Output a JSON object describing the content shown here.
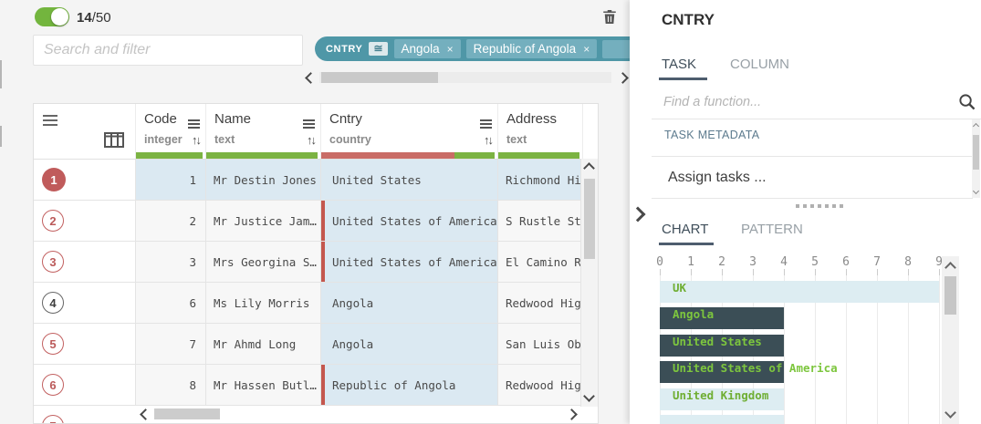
{
  "colors": {
    "accent_teal": "#4f97a7",
    "chip_teal": "#74afbe",
    "toggle_green": "#73b53e",
    "quality_green": "#7cb342",
    "quality_red": "#c96c66",
    "invalid_red": "#c4574e",
    "circle_red": "#c05b5b",
    "highlight_blue": "#dbe9f2",
    "bar_dark": "#3b4e56",
    "bar_light": "#ddedf2",
    "label_green": "#74b837"
  },
  "top_bar": {
    "toggle_state": "on",
    "shown_count": "14",
    "total_count": "/50",
    "search_placeholder": "Search and filter",
    "filter_pill": {
      "column": "CNTRY",
      "operator": "≅",
      "values": [
        "Angola",
        "Republic of Angola"
      ],
      "remove_glyph": "×"
    }
  },
  "table": {
    "header": {
      "sort_glyph": "↑↓",
      "columns": [
        {
          "id": "code",
          "title": "Code",
          "type": "integer",
          "width": 77,
          "has_menu": true,
          "has_sort": true,
          "quality": [
            {
              "color": "#7cb342",
              "pct": 100
            }
          ]
        },
        {
          "id": "name",
          "title": "Name",
          "type": "text",
          "width": 126,
          "has_menu": true,
          "has_sort": true,
          "quality": [
            {
              "color": "#7cb342",
              "pct": 100
            }
          ]
        },
        {
          "id": "cntry",
          "title": "Cntry",
          "type": "country",
          "width": 194,
          "has_menu": true,
          "has_sort": true,
          "quality": [
            {
              "color": "#c96c66",
              "pct": 77
            },
            {
              "color": "#7cb342",
              "pct": 23
            }
          ]
        },
        {
          "id": "address",
          "title": "Address",
          "type": "text",
          "width": 93,
          "has_menu": false,
          "has_sort": false,
          "quality": [
            {
              "color": "#7cb342",
              "pct": 100
            }
          ]
        }
      ]
    },
    "rows": [
      {
        "n": "1",
        "code": "1",
        "name": "Mr Destin Jones",
        "cntry": "United States",
        "addr": "Richmond Hi",
        "highlight": true,
        "invalid": false,
        "circle": "filled-red"
      },
      {
        "n": "2",
        "code": "2",
        "name": "Mr Justice Jam…",
        "cntry": "United States of America",
        "addr": "S Rustle St",
        "highlight": false,
        "invalid": true,
        "circle": "outline-red"
      },
      {
        "n": "3",
        "code": "3",
        "name": "Mrs Georgina S…",
        "cntry": "United States of America",
        "addr": "El Camino R",
        "highlight": false,
        "invalid": true,
        "circle": "outline-red"
      },
      {
        "n": "4",
        "code": "6",
        "name": "Ms Lily Morris",
        "cntry": "Angola",
        "addr": "Redwood Hig",
        "highlight": false,
        "invalid": false,
        "circle": "outline-dark"
      },
      {
        "n": "5",
        "code": "7",
        "name": "Mr Ahmd Long",
        "cntry": "Angola",
        "addr": "San Luis Ob",
        "highlight": false,
        "invalid": false,
        "circle": "outline-red"
      },
      {
        "n": "6",
        "code": "8",
        "name": "Mr Hassen Butl…",
        "cntry": "Republic of Angola",
        "addr": "Redwood Hig",
        "highlight": false,
        "invalid": true,
        "circle": "outline-red"
      }
    ],
    "partial_next_row_num": "7"
  },
  "side_panel": {
    "title": "CNTRY",
    "tabs": [
      {
        "label": "TASK",
        "active": true
      },
      {
        "label": "COLUMN",
        "active": false
      }
    ],
    "function_search_placeholder": "Find a function...",
    "section_label": "TASK METADATA",
    "assign_label": "Assign tasks ...",
    "chart_tabs": [
      {
        "label": "CHART",
        "active": true
      },
      {
        "label": "PATTERN",
        "active": false
      }
    ]
  },
  "chart_data": {
    "type": "bar",
    "orientation": "horizontal",
    "title": "",
    "xlabel": "",
    "ylabel": "",
    "x_axis": {
      "ticks": [
        0,
        1,
        2,
        3,
        4,
        5,
        6,
        7,
        8,
        9
      ],
      "min": 0,
      "max": 10,
      "position": "top"
    },
    "categories": [
      "UK",
      "Angola",
      "United States",
      "United States of America",
      "United Kingdom"
    ],
    "values": [
      9,
      4,
      4,
      4,
      4
    ],
    "highlighted": [
      false,
      true,
      true,
      true,
      false
    ],
    "partial_bottom_bar": {
      "value": 4,
      "label_visible": false
    },
    "legend": "none",
    "grid": "vertical"
  }
}
